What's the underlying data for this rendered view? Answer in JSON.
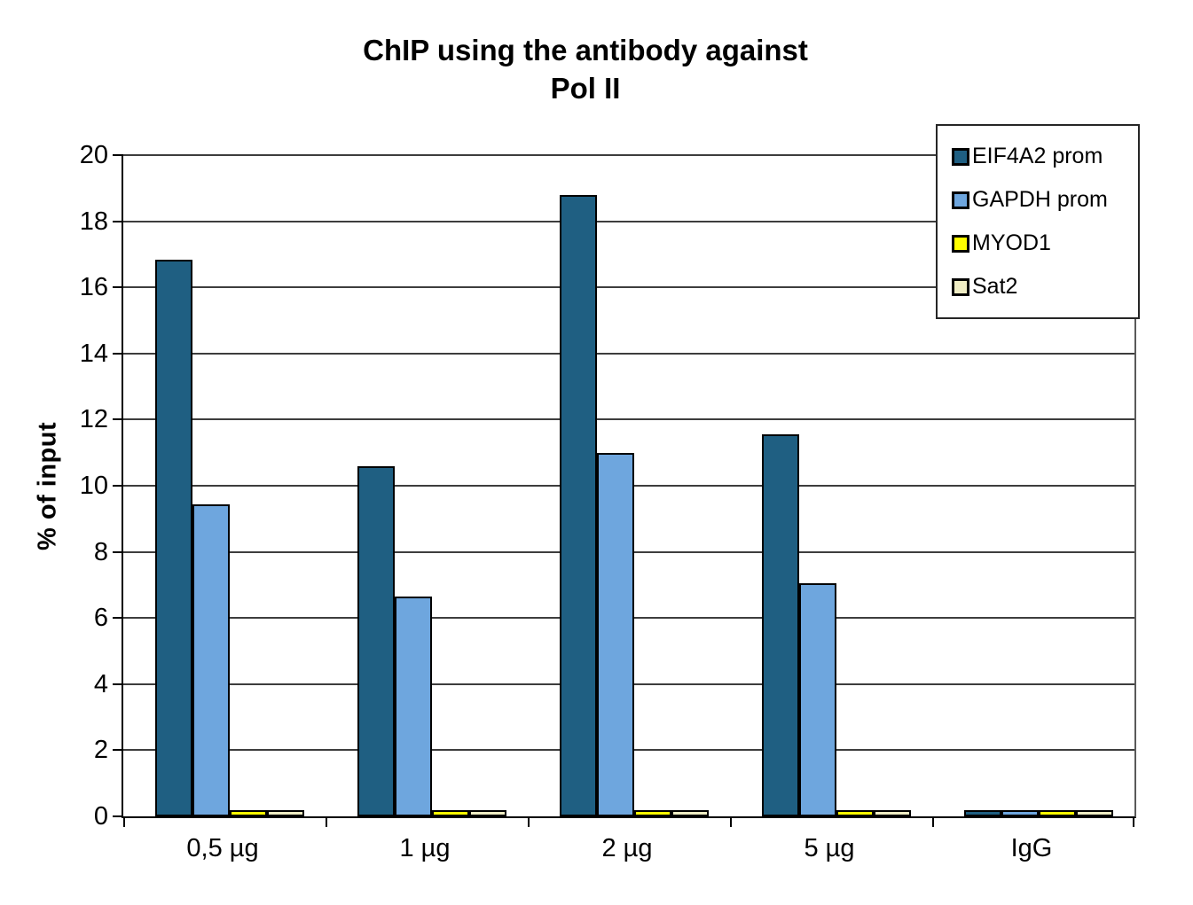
{
  "title_lines": [
    "ChIP using the antibody against",
    "Pol II"
  ],
  "chart_data": {
    "type": "bar",
    "title": "ChIP using the antibody against Pol II",
    "categories": [
      "0,5 µg",
      "1 µg",
      "2 µg",
      "5 µg",
      "IgG"
    ],
    "series": [
      {
        "name": "EIF4A2 prom",
        "color": "#1F5F82",
        "values": [
          16.85,
          10.6,
          18.8,
          11.55,
          0.05
        ]
      },
      {
        "name": "GAPDH prom",
        "color": "#6EA6DE",
        "values": [
          9.45,
          6.65,
          11.0,
          7.05,
          0.05
        ]
      },
      {
        "name": "MYOD1",
        "color": "#FFFF00",
        "values": [
          0.05,
          0.05,
          0.1,
          0.05,
          0.05
        ]
      },
      {
        "name": "Sat2",
        "color": "#EFEDC4",
        "values": [
          0.05,
          0.05,
          0.05,
          0.05,
          0.05
        ]
      }
    ],
    "xlabel": "",
    "ylabel": "% of input",
    "ylim": [
      0,
      20
    ],
    "ytick_step": 2,
    "yticks": [
      0,
      2,
      4,
      6,
      8,
      10,
      12,
      14,
      16,
      18,
      20
    ],
    "grid": true,
    "legend_position": "top-right",
    "bar_outline_color": "#000000",
    "gridline_color": "#3d3d3d"
  }
}
